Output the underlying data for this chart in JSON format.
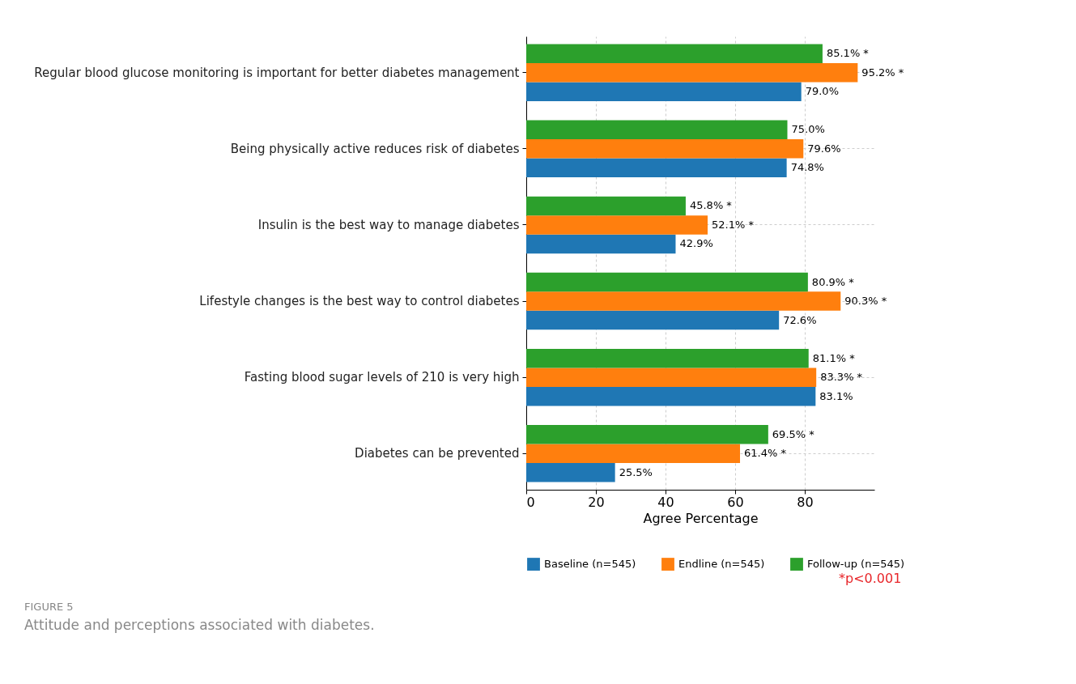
{
  "chart_data": {
    "type": "bar",
    "orientation": "horizontal",
    "categories": [
      "Regular blood glucose monitoring is important for better diabetes management",
      "Being physically active reduces risk of diabetes",
      "Insulin is the best way to manage diabetes",
      "Lifestyle changes is the best way to control diabetes",
      "Fasting blood sugar levels of 210 is very high",
      "Diabetes can be prevented"
    ],
    "series": [
      {
        "name": "Baseline (n=545)",
        "color": "#1f77b4",
        "values": [
          79.0,
          74.8,
          42.9,
          72.6,
          83.1,
          25.5
        ],
        "value_labels": [
          "79.0%",
          "74.8%",
          "42.9%",
          "72.6%",
          "83.1%",
          "25.5%"
        ]
      },
      {
        "name": "Endline (n=545)",
        "color": "#ff7f0e",
        "values": [
          95.2,
          79.6,
          52.1,
          90.3,
          83.3,
          61.4
        ],
        "value_labels": [
          "95.2% *",
          "79.6%",
          "52.1% *",
          "90.3% *",
          "83.3% *",
          "61.4% *"
        ]
      },
      {
        "name": "Follow-up (n=545)",
        "color": "#2ca02c",
        "values": [
          85.1,
          75.0,
          45.8,
          80.9,
          81.1,
          69.5
        ],
        "value_labels": [
          "85.1% *",
          "75.0%",
          "45.8% *",
          "80.9% *",
          "81.1% *",
          "69.5% *"
        ]
      }
    ],
    "xlabel": "Agree Percentage",
    "xlim": [
      0,
      100
    ],
    "xticks": [
      0,
      20,
      40,
      60,
      80
    ],
    "grid": true,
    "legend": "bottom",
    "annotations": [
      "*p<0.001",
      "FIGURE 5",
      "Attitude and perceptions associated with diabetes."
    ]
  }
}
